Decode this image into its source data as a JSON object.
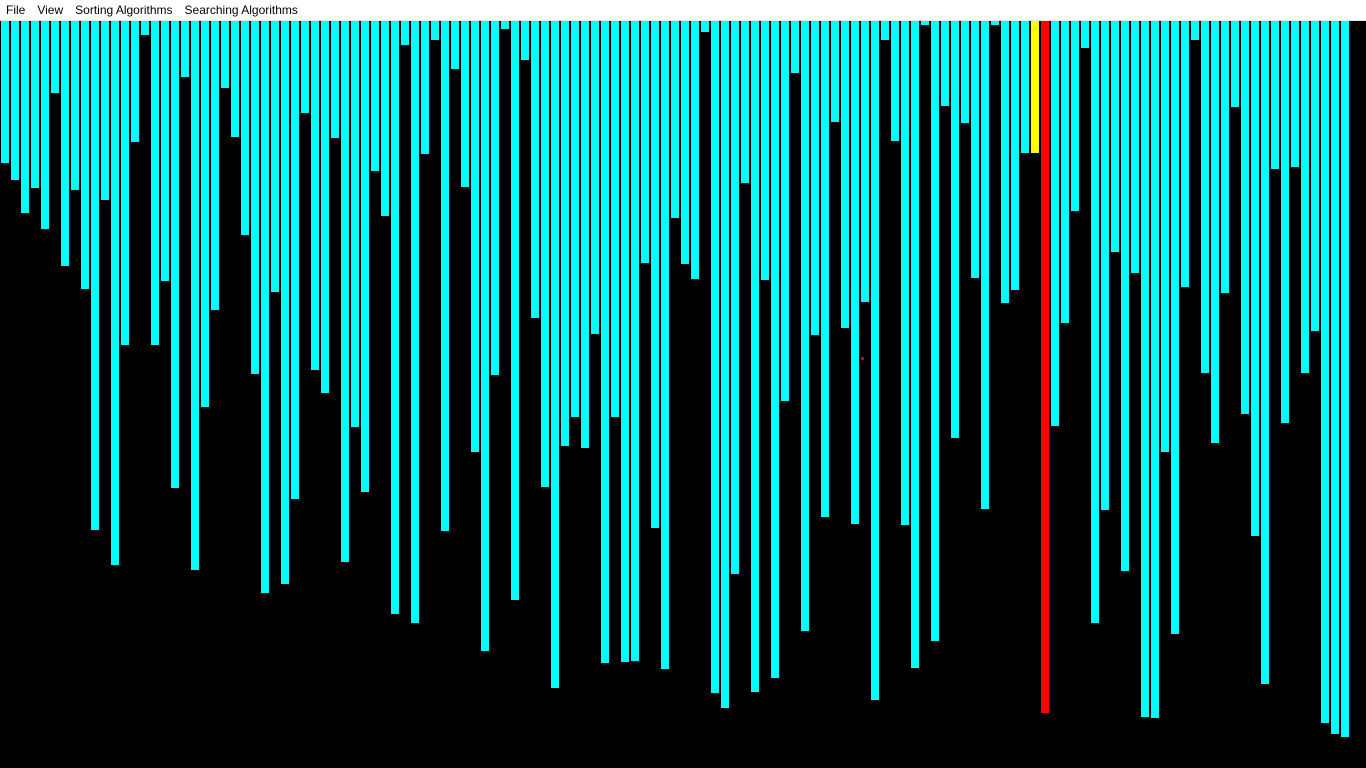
{
  "menubar": {
    "items": [
      {
        "name": "menu-file",
        "label": "File"
      },
      {
        "name": "menu-view",
        "label": "View"
      },
      {
        "name": "menu-sorting-algorithms",
        "label": "Sorting Algorithms"
      },
      {
        "name": "menu-searching-algorithms",
        "label": "Searching Algorithms"
      }
    ]
  },
  "visualizer": {
    "max_value": 740,
    "colors": {
      "background": "#000000",
      "bar": "#00ffff",
      "compare": "#ffff00",
      "active": "#ff0000"
    },
    "compare_index": 103,
    "active_index": 104,
    "values": [
      143,
      160,
      193,
      168,
      209,
      73,
      246,
      170,
      269,
      510,
      180,
      545,
      325,
      122,
      15,
      325,
      261,
      468,
      57,
      550,
      387,
      290,
      68,
      117,
      215,
      354,
      573,
      272,
      564,
      479,
      93,
      350,
      373,
      118,
      542,
      407,
      472,
      151,
      196,
      594,
      25,
      603,
      134,
      20,
      511,
      49,
      167,
      432,
      631,
      355,
      9,
      580,
      40,
      298,
      467,
      668,
      426,
      397,
      428,
      314,
      643,
      397,
      642,
      641,
      243,
      508,
      649,
      198,
      244,
      259,
      12,
      673,
      688,
      554,
      163,
      672,
      260,
      658,
      381,
      53,
      611,
      315,
      497,
      102,
      308,
      504,
      282,
      680,
      20,
      121,
      505,
      648,
      5,
      621,
      86,
      418,
      103,
      258,
      489,
      5,
      283,
      270,
      133,
      133,
      693,
      406,
      303,
      191,
      28,
      603,
      490,
      232,
      551,
      253,
      697,
      698,
      432,
      614,
      267,
      20,
      353,
      423,
      273,
      87,
      394,
      516,
      664,
      149,
      403,
      147,
      353,
      311,
      703,
      714,
      717
    ]
  }
}
